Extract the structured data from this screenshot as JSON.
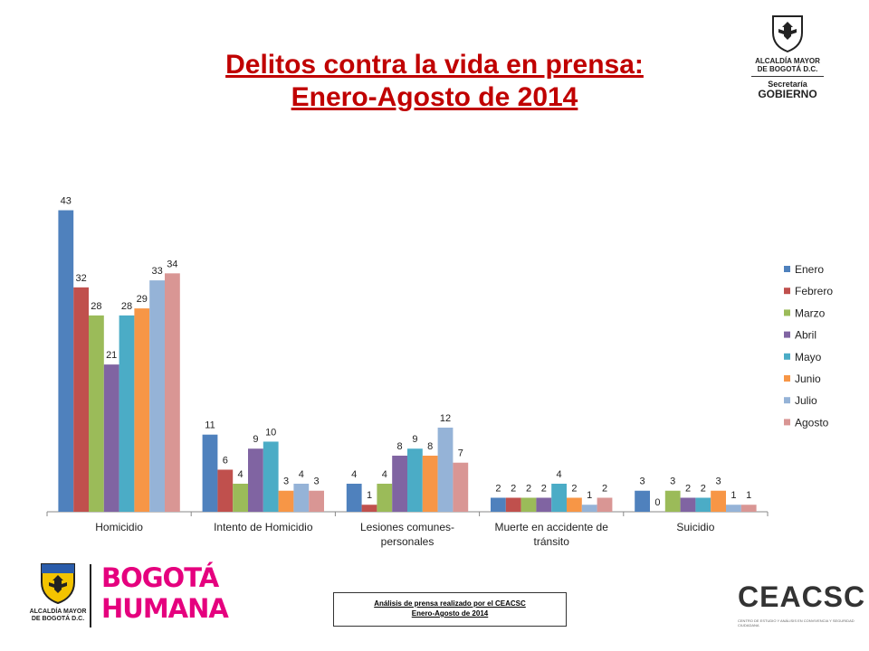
{
  "title_line1": "Delitos contra la vida en prensa:",
  "title_line2": "Enero-Agosto de 2014",
  "top_logo": {
    "line1": "ALCALDÍA MAYOR",
    "line2": "DE BOGOTÁ D.C.",
    "line3": "Secretaría",
    "line4": "GOBIERNO"
  },
  "bottom_left_logo": {
    "line1": "ALCALDÍA MAYOR",
    "line2": "DE BOGOTÁ D.C."
  },
  "bogota_humana": {
    "word1": "BOGOTÁ",
    "word2": "HUMANA"
  },
  "footer": {
    "line1": "Análisis de prensa realizado por el CEACSC",
    "line2": "Enero-Agosto de 2014"
  },
  "ceacsc_logo": {
    "text": "CEACSC",
    "tagline": "CENTRO DE ESTUDIO Y ANÁLISIS EN CONVIVENCIA Y SEGURIDAD CIUDADANA"
  },
  "colors": {
    "title": "#c00000",
    "bogota_humana": "#e5007e"
  },
  "chart_data": {
    "type": "bar",
    "categories": [
      "Homicidio",
      "Intento de Homicidio",
      "Lesiones comunes-personales",
      "Muerte en accidente de tránsito",
      "Suicidio"
    ],
    "category_lines": [
      [
        "Homicidio"
      ],
      [
        "Intento de Homicidio"
      ],
      [
        "Lesiones comunes-",
        "personales"
      ],
      [
        "Muerte en accidente de",
        "tránsito"
      ],
      [
        "Suicidio"
      ]
    ],
    "series": [
      {
        "name": "Enero",
        "color": "#4f81bd",
        "values": [
          43,
          11,
          4,
          2,
          3
        ]
      },
      {
        "name": "Febrero",
        "color": "#c0504d",
        "values": [
          32,
          6,
          1,
          2,
          0
        ]
      },
      {
        "name": "Marzo",
        "color": "#9bbb59",
        "values": [
          28,
          4,
          4,
          2,
          3
        ]
      },
      {
        "name": "Abril",
        "color": "#8064a2",
        "values": [
          21,
          9,
          8,
          2,
          2
        ]
      },
      {
        "name": "Mayo",
        "color": "#4bacc6",
        "values": [
          28,
          10,
          9,
          4,
          2
        ]
      },
      {
        "name": "Junio",
        "color": "#f79646",
        "values": [
          29,
          3,
          8,
          2,
          3
        ]
      },
      {
        "name": "Julio",
        "color": "#95b3d7",
        "values": [
          33,
          4,
          12,
          1,
          1
        ]
      },
      {
        "name": "Agosto",
        "color": "#d99694",
        "values": [
          34,
          3,
          7,
          2,
          1
        ]
      }
    ],
    "ylim": [
      0,
      45
    ],
    "grid": false,
    "legend": "right",
    "data_labels": true
  }
}
